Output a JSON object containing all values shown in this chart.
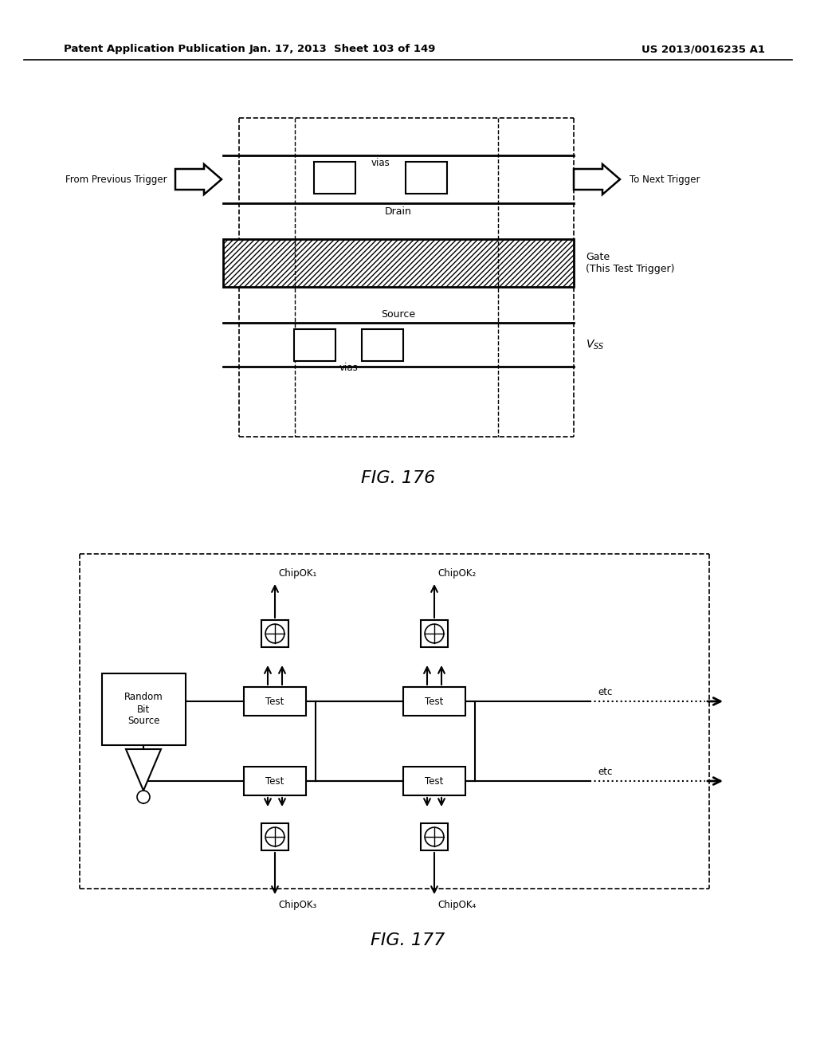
{
  "header_left": "Patent Application Publication",
  "header_mid": "Jan. 17, 2013  Sheet 103 of 149",
  "header_right": "US 2013/0016235 A1",
  "fig176_label": "FIG. 176",
  "fig177_label": "FIG. 177",
  "bg_color": "#ffffff",
  "line_color": "#000000",
  "chipok1": "ChipOK₁",
  "chipok2": "ChipOK₂",
  "chipok3": "ChipOK₃",
  "chipok4": "ChipOK₄",
  "etc_label": "etc",
  "rbs_label": "Random\nBit\nSource",
  "vss_label": "V$_{SS}$"
}
